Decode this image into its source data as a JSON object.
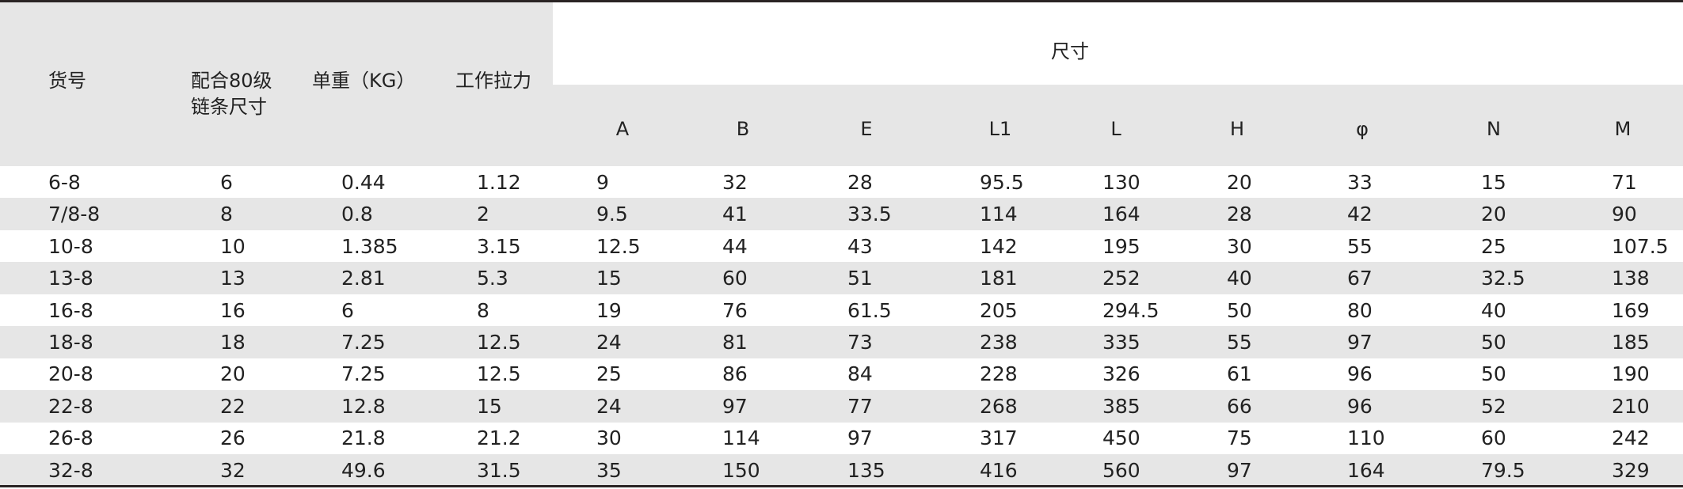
{
  "headers": {
    "item_no": "货号",
    "chain_size_line1": "配合80级",
    "chain_size_line2": "链条尺寸",
    "unit_weight": "单重（KG）",
    "working_load": "工作拉力",
    "dimensions": "尺寸",
    "dims": [
      "A",
      "B",
      "E",
      "L1",
      "L",
      "H",
      "φ",
      "N",
      "M"
    ]
  },
  "rows": [
    [
      "6-8",
      "6",
      "0.44",
      "1.12",
      "9",
      "32",
      "28",
      "95.5",
      "130",
      "20",
      "33",
      "15",
      "71"
    ],
    [
      "7/8-8",
      "8",
      "0.8",
      "2",
      "9.5",
      "41",
      "33.5",
      "114",
      "164",
      "28",
      "42",
      "20",
      "90"
    ],
    [
      "10-8",
      "10",
      "1.385",
      "3.15",
      "12.5",
      "44",
      "43",
      "142",
      "195",
      "30",
      "55",
      "25",
      "107.5"
    ],
    [
      "13-8",
      "13",
      "2.81",
      "5.3",
      "15",
      "60",
      "51",
      "181",
      "252",
      "40",
      "67",
      "32.5",
      "138"
    ],
    [
      "16-8",
      "16",
      "6",
      "8",
      "19",
      "76",
      "61.5",
      "205",
      "294.5",
      "50",
      "80",
      "40",
      "169"
    ],
    [
      "18-8",
      "18",
      "7.25",
      "12.5",
      "24",
      "81",
      "73",
      "238",
      "335",
      "55",
      "97",
      "50",
      "185"
    ],
    [
      "20-8",
      "20",
      "7.25",
      "12.5",
      "25",
      "86",
      "84",
      "228",
      "326",
      "61",
      "96",
      "50",
      "190"
    ],
    [
      "22-8",
      "22",
      "12.8",
      "15",
      "24",
      "97",
      "77",
      "268",
      "385",
      "66",
      "96",
      "52",
      "210"
    ],
    [
      "26-8",
      "26",
      "21.8",
      "21.2",
      "30",
      "114",
      "97",
      "317",
      "450",
      "75",
      "110",
      "60",
      "242"
    ],
    [
      "32-8",
      "32",
      "49.6",
      "31.5",
      "35",
      "150",
      "135",
      "416",
      "560",
      "97",
      "164",
      "79.5",
      "329"
    ]
  ],
  "colors": {
    "header_bg": "#e6e6e6",
    "alt_row_bg": "#e6e6e6",
    "rule": "#2a2424"
  }
}
